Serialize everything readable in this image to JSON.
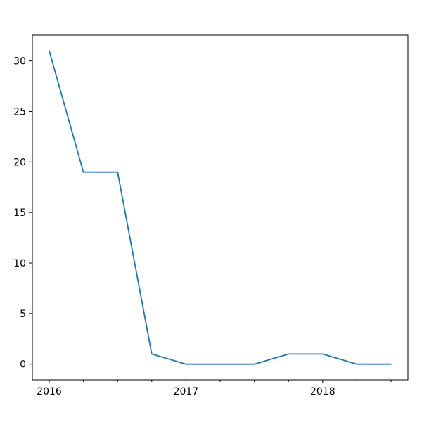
{
  "chart_data": {
    "type": "line",
    "title": "",
    "xlabel": "",
    "ylabel": "",
    "x": [
      "2016-01",
      "2016-04",
      "2016-07",
      "2016-10",
      "2017-01",
      "2017-04",
      "2017-07",
      "2017-10",
      "2018-01",
      "2018-04",
      "2018-07"
    ],
    "series": [
      {
        "values": [
          31,
          19,
          19,
          1,
          0,
          0,
          0,
          1,
          1,
          0,
          0
        ],
        "color": "#1f77b4"
      }
    ],
    "x_major_ticks": [
      "2016",
      "2017",
      "2018"
    ],
    "y_ticks": [
      0,
      5,
      10,
      15,
      20,
      25,
      30
    ],
    "y_tick_labels": [
      "0",
      "5",
      "10",
      "15",
      "20",
      "25",
      "30"
    ],
    "ylim": [
      -1.55,
      32.55
    ],
    "grid": false,
    "legend": "none"
  }
}
